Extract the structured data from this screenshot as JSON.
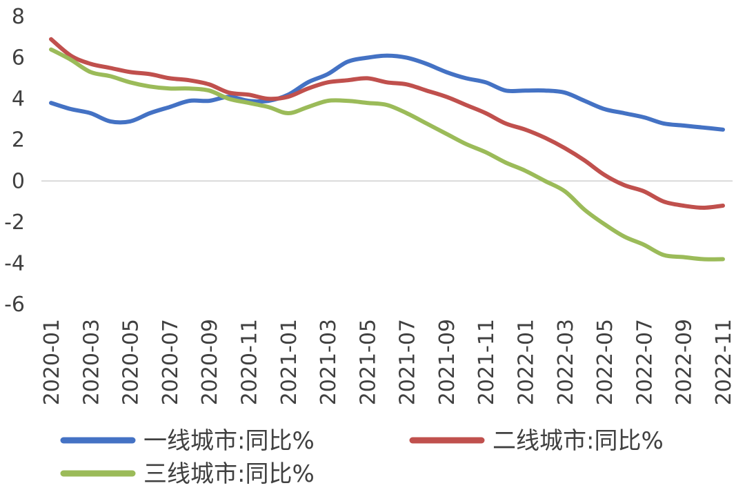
{
  "chart_data": {
    "type": "line",
    "title": "",
    "xlabel": "",
    "ylabel": "",
    "ylim": [
      -6,
      8
    ],
    "yticks": [
      8,
      6,
      4,
      2,
      0,
      -2,
      -4,
      -6
    ],
    "zero_line": true,
    "grid": false,
    "legend_position": "bottom",
    "x": [
      "2020-01",
      "2020-02",
      "2020-03",
      "2020-04",
      "2020-05",
      "2020-06",
      "2020-07",
      "2020-08",
      "2020-09",
      "2020-10",
      "2020-11",
      "2020-12",
      "2021-01",
      "2021-02",
      "2021-03",
      "2021-04",
      "2021-05",
      "2021-06",
      "2021-07",
      "2021-08",
      "2021-09",
      "2021-10",
      "2021-11",
      "2021-12",
      "2022-01",
      "2022-02",
      "2022-03",
      "2022-04",
      "2022-05",
      "2022-06",
      "2022-07",
      "2022-08",
      "2022-09",
      "2022-10",
      "2022-11"
    ],
    "x_tick_labels": [
      "2020-01",
      "2020-03",
      "2020-05",
      "2020-07",
      "2020-09",
      "2020-11",
      "2021-01",
      "2021-03",
      "2021-05",
      "2021-07",
      "2021-09",
      "2021-11",
      "2022-01",
      "2022-03",
      "2022-05",
      "2022-07",
      "2022-09",
      "2022-11"
    ],
    "series": [
      {
        "name": "一线城市:同比%",
        "color": "#4472C4",
        "values": [
          3.8,
          3.5,
          3.3,
          2.9,
          2.9,
          3.3,
          3.6,
          3.9,
          3.9,
          4.1,
          3.9,
          3.9,
          4.2,
          4.8,
          5.2,
          5.8,
          6.0,
          6.1,
          6.0,
          5.7,
          5.3,
          5.0,
          4.8,
          4.4,
          4.4,
          4.4,
          4.3,
          3.9,
          3.5,
          3.3,
          3.1,
          2.8,
          2.7,
          2.6,
          2.5
        ]
      },
      {
        "name": "二线城市:同比%",
        "color": "#C0504D",
        "values": [
          6.9,
          6.1,
          5.7,
          5.5,
          5.3,
          5.2,
          5.0,
          4.9,
          4.7,
          4.3,
          4.2,
          4.0,
          4.1,
          4.5,
          4.8,
          4.9,
          5.0,
          4.8,
          4.7,
          4.4,
          4.1,
          3.7,
          3.3,
          2.8,
          2.5,
          2.1,
          1.6,
          1.0,
          0.3,
          -0.2,
          -0.5,
          -1.0,
          -1.2,
          -1.3,
          -1.2
        ]
      },
      {
        "name": "三线城市:同比%",
        "color": "#9BBB59",
        "values": [
          6.4,
          5.9,
          5.3,
          5.1,
          4.8,
          4.6,
          4.5,
          4.5,
          4.4,
          4.0,
          3.8,
          3.6,
          3.3,
          3.6,
          3.9,
          3.9,
          3.8,
          3.7,
          3.3,
          2.8,
          2.3,
          1.8,
          1.4,
          0.9,
          0.5,
          0.0,
          -0.5,
          -1.4,
          -2.1,
          -2.7,
          -3.1,
          -3.6,
          -3.7,
          -3.8,
          -3.8
        ]
      }
    ]
  }
}
